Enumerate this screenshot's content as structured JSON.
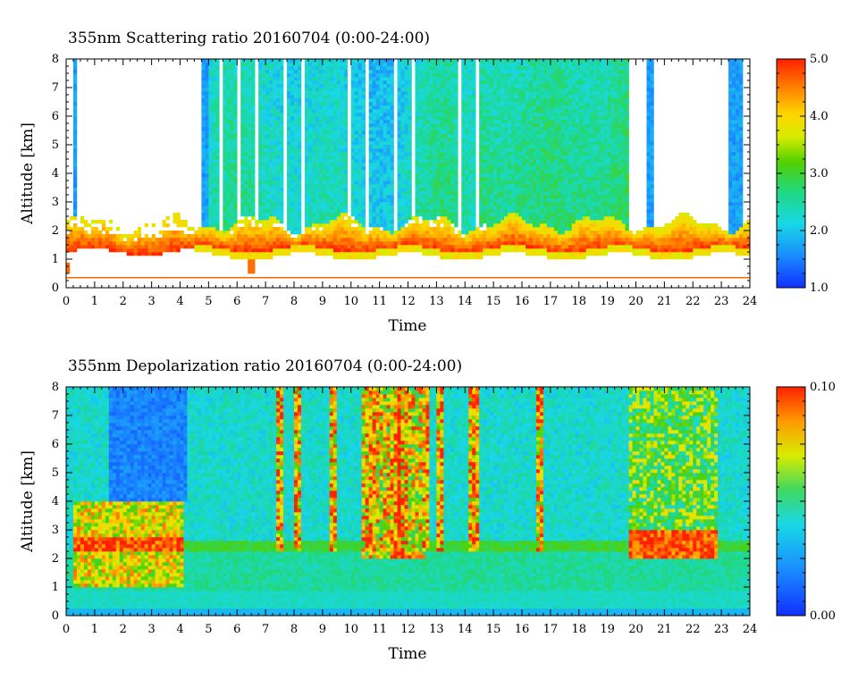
{
  "chart_data": [
    {
      "type": "heatmap",
      "title": "355nm Scattering ratio  20160704 (0:00-24:00)",
      "xlabel": "Time",
      "ylabel": "Altitude [km]",
      "xlim": [
        0,
        24
      ],
      "ylim": [
        0,
        8
      ],
      "x_ticks": [
        "0",
        "1",
        "2",
        "3",
        "4",
        "5",
        "6",
        "7",
        "8",
        "9",
        "10",
        "11",
        "12",
        "13",
        "14",
        "15",
        "16",
        "17",
        "18",
        "19",
        "20",
        "21",
        "22",
        "23",
        "24"
      ],
      "y_ticks": [
        "0",
        "1",
        "2",
        "3",
        "4",
        "5",
        "6",
        "7",
        "8"
      ],
      "colorbar": {
        "range": [
          1.0,
          5.0
        ],
        "tick_labels": [
          "1.0",
          "2.0",
          "3.0",
          "4.0",
          "5.0"
        ],
        "colormap": "rainbow"
      },
      "features": [
        {
          "feature": "boundary_layer_aerosol",
          "t_range": [
            0,
            24
          ],
          "alt_km": [
            1.2,
            2.5
          ],
          "value": 4.7
        },
        {
          "feature": "thin_layer_line",
          "t_range": [
            0,
            24
          ],
          "alt_km": 0.35
        },
        {
          "feature": "low_cloud_blob",
          "t_range": [
            6.4,
            6.6
          ],
          "alt_km": [
            0.5,
            0.9
          ]
        },
        {
          "feature": "upper_column_signal",
          "t_range": [
            4.7,
            19.7
          ],
          "alt_km": [
            2.2,
            8.0
          ],
          "value": 2.7
        },
        {
          "feature": "cloud_top_whitespace",
          "t_range": [
            19.7,
            23.2
          ],
          "alt_km": [
            2.5,
            8.0
          ]
        }
      ]
    },
    {
      "type": "heatmap",
      "title": "355nm Depolarization ratio  20160704 (0:00-24:00)",
      "xlabel": "Time",
      "ylabel": "Altitude [km]",
      "xlim": [
        0,
        24
      ],
      "ylim": [
        0,
        8
      ],
      "x_ticks": [
        "0",
        "1",
        "2",
        "3",
        "4",
        "5",
        "6",
        "7",
        "8",
        "9",
        "10",
        "11",
        "12",
        "13",
        "14",
        "15",
        "16",
        "17",
        "18",
        "19",
        "20",
        "21",
        "22",
        "23",
        "24"
      ],
      "y_ticks": [
        "0",
        "1",
        "2",
        "3",
        "4",
        "5",
        "6",
        "7",
        "8"
      ],
      "colorbar": {
        "range": [
          0.0,
          0.1
        ],
        "tick_labels": [
          "0.00",
          "0.10"
        ],
        "colormap": "rainbow"
      },
      "features": [
        {
          "feature": "high_depol_layer",
          "t_range": [
            0.5,
            4.0
          ],
          "alt_km": [
            1.0,
            4.0
          ],
          "value": 0.08
        },
        {
          "feature": "cirrus_streaks",
          "t_range": [
            10.5,
            12.5
          ],
          "alt_km": [
            2.0,
            8.0
          ],
          "value": 0.1
        },
        {
          "feature": "high_depol_layer",
          "t_range": [
            19.7,
            22.8
          ],
          "alt_km": [
            2.2,
            3.0
          ],
          "value": 0.09
        },
        {
          "feature": "background",
          "t_range": [
            0,
            24
          ],
          "alt_km": [
            0,
            8
          ],
          "value": 0.02
        }
      ]
    }
  ]
}
